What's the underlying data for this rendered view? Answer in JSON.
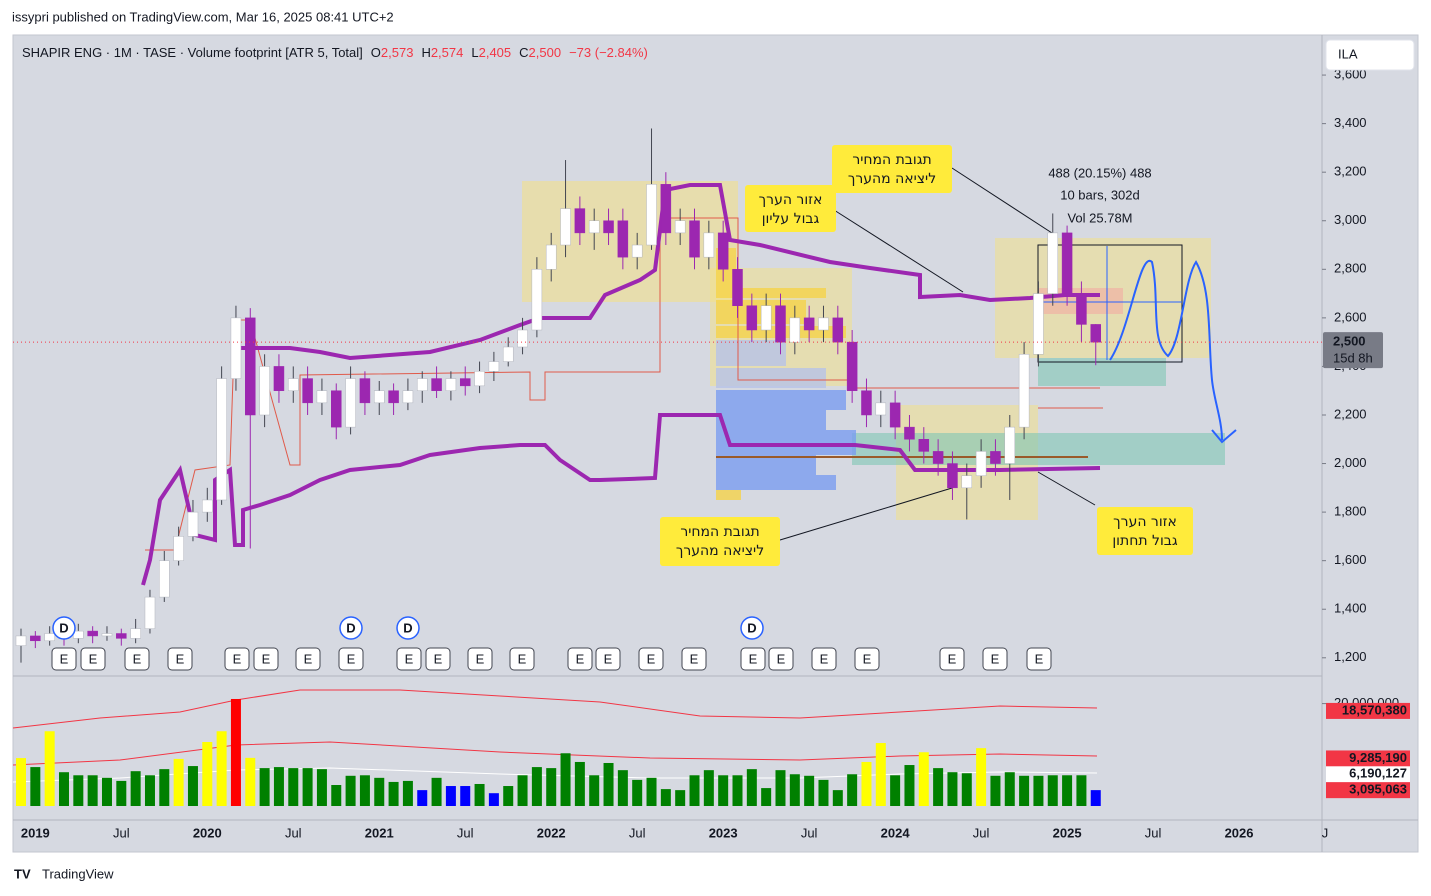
{
  "header": {
    "published": "issypri published on TradingView.com, Mar 16, 2025 08:41 UTC+2"
  },
  "symbol_line": {
    "title": "SHAPIR ENG · 1M · TASE · Volume footprint [ATR 5, Total]",
    "o_label": "O",
    "open": "2,573",
    "h_label": "H",
    "high": "2,574",
    "l_label": "L",
    "low": "2,405",
    "c_label": "C",
    "close": "2,500",
    "change": "−73 (−2.84%)"
  },
  "footer": {
    "brand": "TradingView"
  },
  "chart_data": [
    {
      "type": "candlestick",
      "currency": "ILA",
      "up_color": "#ffffff",
      "down_color": "#9c27b0",
      "grid": false,
      "categories": [
        null,
        "2019",
        null,
        null,
        null,
        null,
        null,
        "Jul",
        null,
        null,
        null,
        null,
        null,
        "2020",
        null,
        null,
        null,
        null,
        null,
        "Jul",
        null,
        null,
        null,
        null,
        null,
        "2021",
        null,
        null,
        null,
        null,
        null,
        "Jul",
        null,
        null,
        null,
        null,
        null,
        "2022",
        null,
        null,
        null,
        null,
        null,
        "Jul",
        null,
        null,
        null,
        null,
        null,
        "2023",
        null,
        null,
        null,
        null,
        null,
        "Jul",
        null,
        null,
        null,
        null,
        null,
        "2024",
        null,
        null,
        null,
        null,
        null,
        "Jul",
        null,
        null,
        null,
        null,
        null,
        "2025",
        null,
        null,
        null,
        null,
        null,
        "Jul",
        null,
        null,
        null,
        null,
        null,
        "2026",
        null,
        null,
        null,
        null,
        null,
        "J"
      ],
      "open": [
        1250,
        1290,
        1270,
        1300,
        1280,
        1310,
        1290,
        1300,
        1280,
        1320,
        1450,
        1600,
        1700,
        1800,
        1850,
        2350,
        2600,
        2200,
        2400,
        2300,
        2350,
        2250,
        2300,
        2150,
        2350,
        2250,
        2300,
        2250,
        2300,
        2350,
        2300,
        2350,
        2320,
        2380,
        2420,
        2480,
        2550,
        2800,
        2900,
        3050,
        2950,
        3000,
        3000,
        2850,
        2900,
        3150,
        2950,
        3000,
        2850,
        2950,
        2800,
        2650,
        2550,
        2650,
        2500,
        2600,
        2550,
        2600,
        2500,
        2300,
        2200,
        2250,
        2150,
        2100,
        2050,
        2000,
        1900,
        1950,
        2050,
        2000,
        2150,
        2450,
        2700,
        2950,
        2700,
        2573,
        null,
        null,
        null,
        null,
        null,
        null,
        null,
        null,
        null,
        null,
        null,
        null,
        null,
        null,
        null,
        null
      ],
      "high": [
        1320,
        1310,
        1330,
        1320,
        1340,
        1330,
        1330,
        1320,
        1360,
        1480,
        1640,
        1740,
        1850,
        1900,
        2400,
        2650,
        2640,
        2450,
        2450,
        2400,
        2400,
        2350,
        2330,
        2400,
        2380,
        2340,
        2330,
        2350,
        2380,
        2400,
        2380,
        2400,
        2420,
        2460,
        2520,
        2600,
        2850,
        2950,
        3250,
        3100,
        3050,
        3050,
        3050,
        2950,
        3380,
        3200,
        3050,
        3050,
        3000,
        3000,
        2850,
        2700,
        2700,
        2700,
        2650,
        2650,
        2650,
        2650,
        2550,
        2350,
        2300,
        2300,
        2200,
        2150,
        2100,
        2050,
        2000,
        2100,
        2100,
        2200,
        2500,
        2750,
        3030,
        2980,
        2750,
        2574,
        null,
        null,
        null,
        null,
        null,
        null,
        null,
        null,
        null,
        null,
        null,
        null,
        null,
        null,
        null,
        null
      ],
      "low": [
        1180,
        1240,
        1250,
        1250,
        1260,
        1260,
        1270,
        1250,
        1260,
        1300,
        1430,
        1580,
        1680,
        1760,
        1830,
        2300,
        1650,
        2150,
        2250,
        2250,
        2200,
        2200,
        2100,
        2120,
        2200,
        2200,
        2200,
        2220,
        2250,
        2270,
        2260,
        2280,
        2290,
        2340,
        2400,
        2450,
        2520,
        2750,
        2850,
        2900,
        2880,
        2900,
        2800,
        2800,
        2880,
        2900,
        2900,
        2800,
        2800,
        2750,
        2600,
        2500,
        2500,
        2450,
        2450,
        2500,
        2500,
        2450,
        2250,
        2150,
        2150,
        2100,
        2050,
        2000,
        1950,
        1850,
        1770,
        1900,
        1950,
        1850,
        2100,
        2400,
        2650,
        2650,
        2500,
        2405,
        null,
        null,
        null,
        null,
        null,
        null,
        null,
        null,
        null,
        null,
        null,
        null,
        null,
        null,
        null,
        null
      ],
      "close": [
        1290,
        1270,
        1300,
        1280,
        1310,
        1290,
        1300,
        1280,
        1320,
        1450,
        1600,
        1700,
        1800,
        1850,
        2350,
        2600,
        2200,
        2400,
        2300,
        2350,
        2250,
        2300,
        2150,
        2350,
        2250,
        2300,
        2250,
        2300,
        2350,
        2300,
        2350,
        2320,
        2380,
        2420,
        2480,
        2550,
        2800,
        2900,
        3050,
        2950,
        3000,
        2950,
        2850,
        2900,
        3150,
        2950,
        3000,
        2850,
        2950,
        2800,
        2650,
        2550,
        2650,
        2500,
        2600,
        2550,
        2600,
        2500,
        2300,
        2200,
        2250,
        2150,
        2100,
        2050,
        2000,
        1900,
        1950,
        2050,
        2000,
        2150,
        2450,
        2700,
        2950,
        2700,
        2573,
        2500,
        null,
        null,
        null,
        null,
        null,
        null,
        null,
        null,
        null,
        null,
        null,
        null,
        null,
        null,
        null,
        null
      ],
      "ylim": [
        1125,
        3765
      ],
      "yticks": [
        {
          "value": 1200,
          "label": "1,200"
        },
        {
          "value": 1400,
          "label": "1,400"
        },
        {
          "value": 1600,
          "label": "1,600"
        },
        {
          "value": 1800,
          "label": "1,800"
        },
        {
          "value": 2000,
          "label": "2,000"
        },
        {
          "value": 2200,
          "label": "2,200"
        },
        {
          "value": 2400,
          "label": "2,400"
        },
        {
          "value": 2600,
          "label": "2,600"
        },
        {
          "value": 2800,
          "label": "2,800"
        },
        {
          "value": 3000,
          "label": "3,000"
        },
        {
          "value": 3200,
          "label": "3,200"
        },
        {
          "value": 3400,
          "label": "3,400"
        },
        {
          "value": 3600,
          "label": "3,600"
        }
      ],
      "last_price": {
        "value": 2500,
        "label": "2,500",
        "countdown": "15d 8h",
        "color": "#787b86"
      },
      "measure": {
        "range": "488 (20.15%) 488",
        "bars": "10 bars, 302d",
        "volume": "Vol 25.78M"
      },
      "annotations": [
        {
          "lines": [
            "תגובת המחיר",
            "ליציאה מהערך"
          ]
        },
        {
          "lines": [
            "אזור הערך",
            "גבול עליון"
          ]
        },
        {
          "lines": [
            "תגובת המחיר",
            "ליציאה מהערך"
          ]
        },
        {
          "lines": [
            "אזור הערך",
            "גבול תחתון"
          ]
        }
      ],
      "dividends": [
        "D",
        "D",
        "D",
        "D"
      ],
      "earnings": [
        "E",
        "E",
        "E",
        "E",
        "E",
        "E",
        "E",
        "E",
        "E",
        "E",
        "E",
        "E",
        "E",
        "E",
        "E",
        "E",
        "E",
        "E",
        "E",
        "E",
        "E",
        "E",
        "E"
      ]
    },
    {
      "type": "bar",
      "values": [
        9360000,
        7600000,
        14600000,
        6600000,
        6000000,
        6000000,
        5500000,
        4900000,
        6800000,
        6000000,
        7200000,
        9200000,
        7800000,
        12500000,
        14600000,
        20900000,
        9400000,
        7400000,
        7600000,
        7400000,
        7400000,
        7200000,
        4100000,
        5900000,
        6000000,
        5500000,
        4700000,
        4900000,
        3100000,
        5500000,
        3900000,
        3900000,
        4300000,
        2500000,
        3900000,
        6000000,
        7600000,
        7400000,
        10300000,
        8600000,
        6000000,
        8400000,
        7000000,
        5100000,
        5500000,
        3300000,
        3100000,
        6000000,
        7000000,
        6000000,
        6000000,
        7200000,
        3500000,
        7000000,
        6200000,
        5900000,
        5100000,
        3100000,
        6200000,
        8600000,
        12300000,
        6000000,
        8000000,
        10500000,
        7400000,
        6600000,
        6400000,
        11300000,
        5900000,
        6600000,
        5900000,
        5900000,
        6000000,
        6000000,
        6000000,
        3100000
      ],
      "colors": [
        "#ffff00",
        "#008000",
        "#ffff00",
        "#008000",
        "#008000",
        "#008000",
        "#008000",
        "#008000",
        "#008000",
        "#008000",
        "#008000",
        "#ffff00",
        "#008000",
        "#ffff00",
        "#ffff00",
        "#ff0000",
        "#ffff00",
        "#008000",
        "#008000",
        "#008000",
        "#008000",
        "#008000",
        "#008000",
        "#008000",
        "#008000",
        "#008000",
        "#008000",
        "#008000",
        "#0000ff",
        "#008000",
        "#0000ff",
        "#0000ff",
        "#008000",
        "#0000ff",
        "#008000",
        "#008000",
        "#008000",
        "#008000",
        "#008000",
        "#008000",
        "#008000",
        "#008000",
        "#008000",
        "#008000",
        "#008000",
        "#008000",
        "#008000",
        "#008000",
        "#008000",
        "#008000",
        "#008000",
        "#008000",
        "#008000",
        "#008000",
        "#008000",
        "#008000",
        "#008000",
        "#008000",
        "#008000",
        "#ffff00",
        "#ffff00",
        "#008000",
        "#008000",
        "#ffff00",
        "#008000",
        "#008000",
        "#008000",
        "#ffff00",
        "#008000",
        "#008000",
        "#008000",
        "#008000",
        "#008000",
        "#008000",
        "#008000",
        "#0000ff"
      ],
      "ylim": [
        0,
        25000000
      ],
      "yticks": [
        {
          "value": 20000000,
          "label": "20,000,000"
        }
      ],
      "badges": [
        {
          "value": 18570380,
          "label": "18,570,380",
          "color": "#f23645"
        },
        {
          "value": 9285190,
          "label": "9,285,190",
          "color": "#f23645"
        },
        {
          "value": 6190127,
          "label": "6,190,127",
          "color": "#ffffff"
        },
        {
          "value": 3095063,
          "label": "3,095,063",
          "color": "#f23645"
        }
      ]
    }
  ]
}
